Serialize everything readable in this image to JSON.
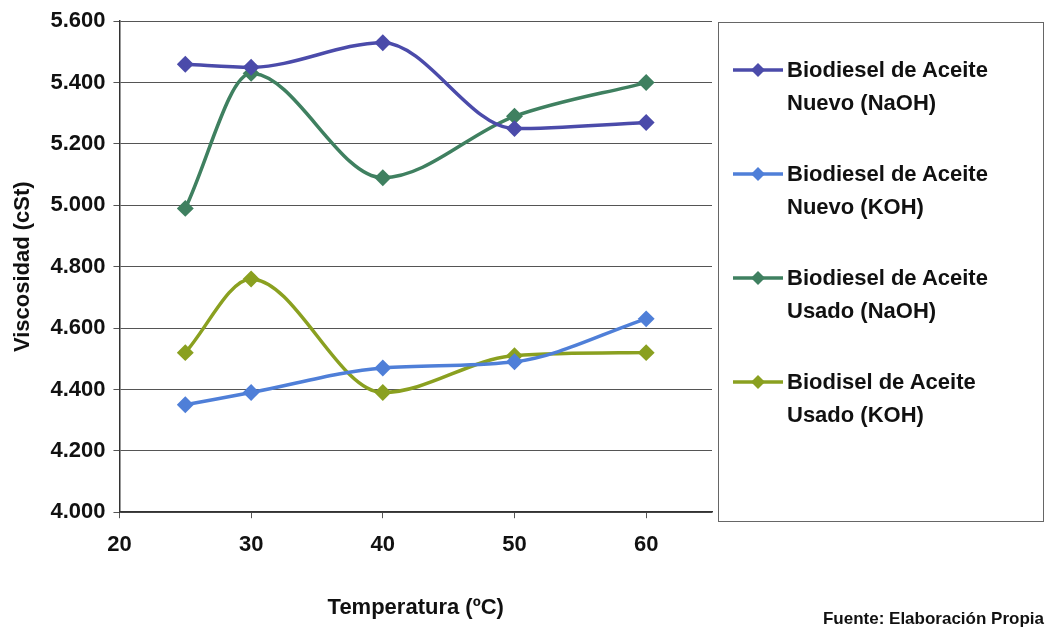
{
  "chart_data": {
    "type": "line",
    "xlabel": "Temperatura (ºC)",
    "ylabel": "Viscosidad (cSt)",
    "x": [
      25,
      30,
      40,
      50,
      60
    ],
    "xlim": [
      20,
      65
    ],
    "xticks": [
      20,
      30,
      40,
      50,
      60
    ],
    "ylim": [
      4.0,
      5.6
    ],
    "yticks": [
      {
        "value": 4.0,
        "label": "4.000"
      },
      {
        "value": 4.2,
        "label": "4.200"
      },
      {
        "value": 4.4,
        "label": "4.400"
      },
      {
        "value": 4.6,
        "label": "4.600"
      },
      {
        "value": 4.8,
        "label": "4.800"
      },
      {
        "value": 5.0,
        "label": "5.000"
      },
      {
        "value": 5.2,
        "label": "5.200"
      },
      {
        "value": 5.4,
        "label": "5.400"
      },
      {
        "value": 5.6,
        "label": "5.600"
      }
    ],
    "series": [
      {
        "name": "Biodiesel de Aceite Nuevo (NaOH)",
        "color": "#4b4baa",
        "values": [
          5.46,
          5.45,
          5.53,
          5.25,
          5.27
        ]
      },
      {
        "name": "Biodiesel de Aceite Nuevo (KOH)",
        "color": "#4f7fd8",
        "values": [
          4.35,
          4.39,
          4.47,
          4.49,
          4.63
        ]
      },
      {
        "name": "Biodiesel de Aceite Usado (NaOH)",
        "color": "#3f8060",
        "values": [
          4.99,
          5.43,
          5.09,
          5.29,
          5.4
        ]
      },
      {
        "name": "Biodisel de Aceite Usado (KOH)",
        "color": "#8aa020",
        "values": [
          4.52,
          4.76,
          4.39,
          4.51,
          4.52
        ]
      }
    ],
    "grid": "y",
    "legend": "right",
    "marker": "diamond",
    "line_style": "solid",
    "annotations": [
      "Fuente: Elaboración Propia"
    ]
  }
}
